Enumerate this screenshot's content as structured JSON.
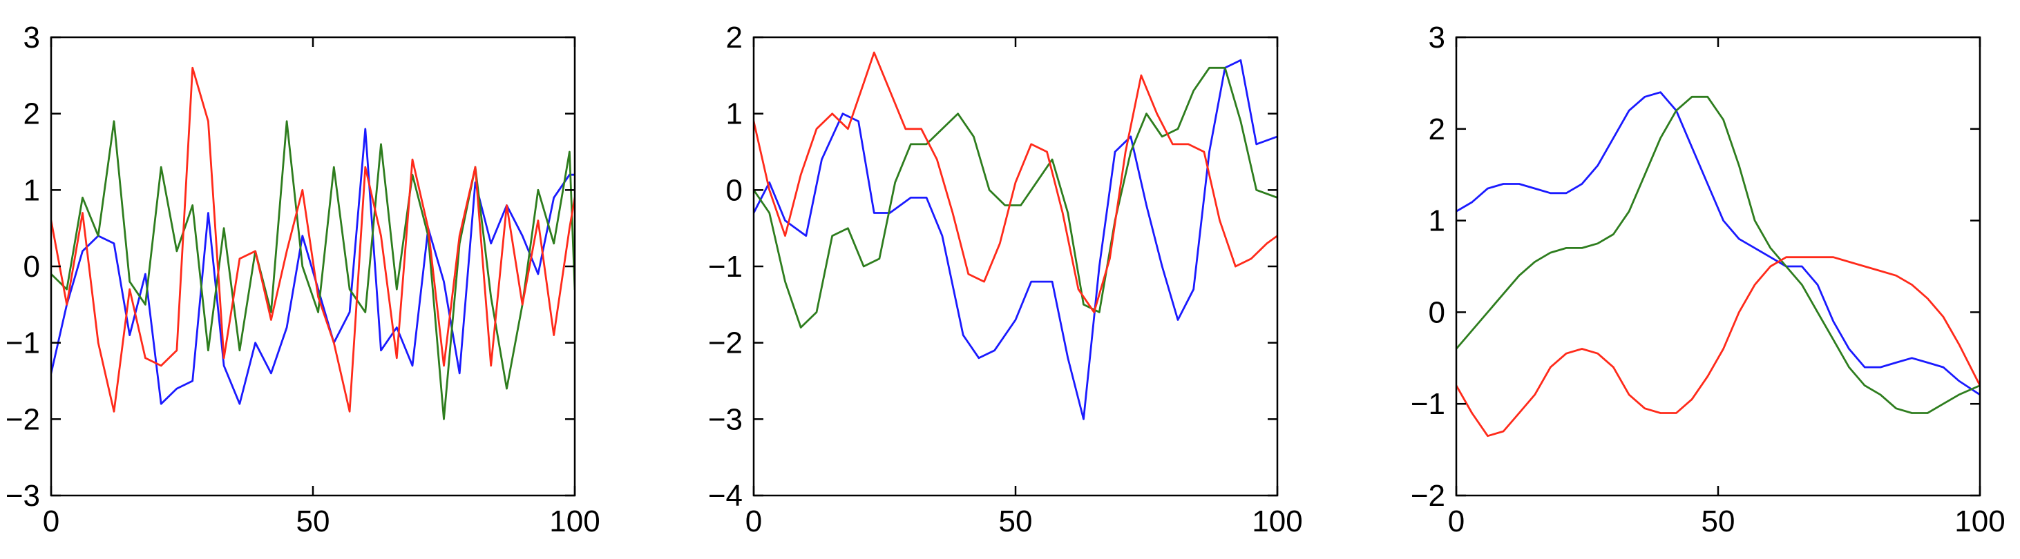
{
  "colors": {
    "blue": "#1a1aff",
    "green": "#2e7d1e",
    "red": "#ff2a1a"
  },
  "chart_data": [
    {
      "type": "line",
      "title": "",
      "xlabel": "",
      "ylabel": "",
      "xlim": [
        0,
        100
      ],
      "ylim": [
        -3,
        3
      ],
      "xticks": [
        0,
        50,
        100
      ],
      "yticks": [
        -3,
        -2,
        -1,
        0,
        1,
        2,
        3
      ],
      "xtick_labels": [
        "0",
        "50",
        "100"
      ],
      "ytick_labels": [
        "−3",
        "−2",
        "−1",
        "0",
        "1",
        "2",
        "3"
      ],
      "grid": false,
      "legend": "none",
      "series": [
        {
          "color": "blue",
          "x": [
            0,
            3,
            6,
            9,
            12,
            15,
            18,
            21,
            24,
            27,
            30,
            33,
            36,
            39,
            42,
            45,
            48,
            51,
            54,
            57,
            60,
            63,
            66,
            69,
            72,
            75,
            78,
            81,
            84,
            87,
            90,
            93,
            96,
            99,
            100
          ],
          "y": [
            -1.4,
            -0.5,
            0.2,
            0.4,
            0.3,
            -0.9,
            -0.1,
            -1.8,
            -1.6,
            -1.5,
            0.7,
            -1.3,
            -1.8,
            -1.0,
            -1.4,
            -0.8,
            0.4,
            -0.3,
            -1.0,
            -0.6,
            1.8,
            -1.1,
            -0.8,
            -1.3,
            0.5,
            -0.2,
            -1.4,
            1.1,
            0.3,
            0.8,
            0.4,
            -0.1,
            0.9,
            1.2,
            1.2
          ]
        },
        {
          "color": "green",
          "x": [
            0,
            3,
            6,
            9,
            12,
            15,
            18,
            21,
            24,
            27,
            30,
            33,
            36,
            39,
            42,
            45,
            48,
            51,
            54,
            57,
            60,
            63,
            66,
            69,
            72,
            75,
            78,
            81,
            84,
            87,
            90,
            93,
            96,
            99,
            100
          ],
          "y": [
            -0.1,
            -0.3,
            0.9,
            0.4,
            1.9,
            -0.2,
            -0.5,
            1.3,
            0.2,
            0.8,
            -1.1,
            0.5,
            -1.1,
            0.2,
            -0.6,
            1.9,
            0.0,
            -0.6,
            1.3,
            -0.3,
            -0.6,
            1.6,
            -0.3,
            1.2,
            0.4,
            -2.0,
            0.3,
            1.3,
            -0.4,
            -1.6,
            -0.5,
            1.0,
            0.3,
            1.5,
            -0.3
          ]
        },
        {
          "color": "red",
          "x": [
            0,
            3,
            6,
            9,
            12,
            15,
            18,
            21,
            24,
            27,
            30,
            33,
            36,
            39,
            42,
            45,
            48,
            51,
            54,
            57,
            60,
            63,
            66,
            69,
            72,
            75,
            78,
            81,
            84,
            87,
            90,
            93,
            96,
            99,
            100
          ],
          "y": [
            0.6,
            -0.5,
            0.7,
            -1.0,
            -1.9,
            -0.3,
            -1.2,
            -1.3,
            -1.1,
            2.6,
            1.9,
            -1.2,
            0.1,
            0.2,
            -0.7,
            0.2,
            1.0,
            -0.4,
            -1.0,
            -1.9,
            1.3,
            0.4,
            -1.2,
            1.4,
            0.5,
            -1.3,
            0.4,
            1.3,
            -1.3,
            0.8,
            -0.5,
            0.6,
            -0.9,
            0.5,
            0.9
          ]
        }
      ]
    },
    {
      "type": "line",
      "title": "",
      "xlabel": "",
      "ylabel": "",
      "xlim": [
        0,
        100
      ],
      "ylim": [
        -4,
        2
      ],
      "xticks": [
        0,
        50,
        100
      ],
      "yticks": [
        -4,
        -3,
        -2,
        -1,
        0,
        1,
        2
      ],
      "xtick_labels": [
        "0",
        "50",
        "100"
      ],
      "ytick_labels": [
        "−4",
        "−3",
        "−2",
        "−1",
        "0",
        "1",
        "2"
      ],
      "grid": false,
      "legend": "none",
      "series": [
        {
          "color": "blue",
          "x": [
            0,
            3,
            6,
            10,
            13,
            17,
            20,
            23,
            26,
            30,
            33,
            36,
            40,
            43,
            46,
            50,
            53,
            57,
            60,
            63,
            66,
            69,
            72,
            75,
            78,
            81,
            84,
            87,
            90,
            93,
            96,
            100
          ],
          "y": [
            -0.3,
            0.1,
            -0.4,
            -0.6,
            0.4,
            1.0,
            0.9,
            -0.3,
            -0.3,
            -0.1,
            -0.1,
            -0.6,
            -1.9,
            -2.2,
            -2.1,
            -1.7,
            -1.2,
            -1.2,
            -2.2,
            -3.0,
            -1.0,
            0.5,
            0.7,
            -0.2,
            -1.0,
            -1.7,
            -1.3,
            0.5,
            1.6,
            1.7,
            0.6,
            0.7
          ]
        },
        {
          "color": "green",
          "x": [
            0,
            3,
            6,
            9,
            12,
            15,
            18,
            21,
            24,
            27,
            30,
            33,
            36,
            39,
            42,
            45,
            48,
            51,
            54,
            57,
            60,
            63,
            66,
            69,
            72,
            75,
            78,
            81,
            84,
            87,
            90,
            93,
            96,
            100
          ],
          "y": [
            0.0,
            -0.3,
            -1.2,
            -1.8,
            -1.6,
            -0.6,
            -0.5,
            -1.0,
            -0.9,
            0.1,
            0.6,
            0.6,
            0.8,
            1.0,
            0.7,
            0.0,
            -0.2,
            -0.2,
            0.1,
            0.4,
            -0.3,
            -1.5,
            -1.6,
            -0.4,
            0.5,
            1.0,
            0.7,
            0.8,
            1.3,
            1.6,
            1.6,
            0.9,
            0.0,
            -0.1
          ]
        },
        {
          "color": "red",
          "x": [
            0,
            3,
            6,
            9,
            12,
            15,
            18,
            21,
            23,
            26,
            29,
            32,
            35,
            38,
            41,
            44,
            47,
            50,
            53,
            56,
            59,
            62,
            65,
            68,
            71,
            74,
            77,
            80,
            83,
            86,
            89,
            92,
            95,
            98,
            100
          ],
          "y": [
            0.9,
            0.0,
            -0.6,
            0.2,
            0.8,
            1.0,
            0.8,
            1.4,
            1.8,
            1.3,
            0.8,
            0.8,
            0.4,
            -0.3,
            -1.1,
            -1.2,
            -0.7,
            0.1,
            0.6,
            0.5,
            -0.3,
            -1.3,
            -1.6,
            -0.9,
            0.5,
            1.5,
            1.0,
            0.6,
            0.6,
            0.5,
            -0.4,
            -1.0,
            -0.9,
            -0.7,
            -0.6
          ]
        }
      ]
    },
    {
      "type": "line",
      "title": "",
      "xlabel": "",
      "ylabel": "",
      "xlim": [
        0,
        100
      ],
      "ylim": [
        -2,
        3
      ],
      "xticks": [
        0,
        50,
        100
      ],
      "yticks": [
        -2,
        -1,
        0,
        1,
        2,
        3
      ],
      "xtick_labels": [
        "0",
        "50",
        "100"
      ],
      "ytick_labels": [
        "−2",
        "−1",
        "0",
        "1",
        "2",
        "3"
      ],
      "grid": false,
      "legend": "none",
      "series": [
        {
          "color": "blue",
          "x": [
            0,
            3,
            6,
            9,
            12,
            15,
            18,
            21,
            24,
            27,
            30,
            33,
            36,
            39,
            42,
            45,
            48,
            51,
            54,
            57,
            60,
            63,
            66,
            69,
            72,
            75,
            78,
            81,
            84,
            87,
            90,
            93,
            96,
            100
          ],
          "y": [
            1.1,
            1.2,
            1.35,
            1.4,
            1.4,
            1.35,
            1.3,
            1.3,
            1.4,
            1.6,
            1.9,
            2.2,
            2.35,
            2.4,
            2.2,
            1.8,
            1.4,
            1.0,
            0.8,
            0.7,
            0.6,
            0.5,
            0.5,
            0.3,
            -0.1,
            -0.4,
            -0.6,
            -0.6,
            -0.55,
            -0.5,
            -0.55,
            -0.6,
            -0.75,
            -0.9
          ]
        },
        {
          "color": "green",
          "x": [
            0,
            3,
            6,
            9,
            12,
            15,
            18,
            21,
            24,
            27,
            30,
            33,
            36,
            39,
            42,
            45,
            48,
            51,
            54,
            57,
            60,
            63,
            66,
            69,
            72,
            75,
            78,
            81,
            84,
            87,
            90,
            93,
            96,
            100
          ],
          "y": [
            -0.4,
            -0.2,
            0.0,
            0.2,
            0.4,
            0.55,
            0.65,
            0.7,
            0.7,
            0.75,
            0.85,
            1.1,
            1.5,
            1.9,
            2.2,
            2.35,
            2.35,
            2.1,
            1.6,
            1.0,
            0.7,
            0.5,
            0.3,
            0.0,
            -0.3,
            -0.6,
            -0.8,
            -0.9,
            -1.05,
            -1.1,
            -1.1,
            -1.0,
            -0.9,
            -0.8
          ]
        },
        {
          "color": "red",
          "x": [
            0,
            3,
            6,
            9,
            12,
            15,
            18,
            21,
            24,
            27,
            30,
            33,
            36,
            39,
            42,
            45,
            48,
            51,
            54,
            57,
            60,
            63,
            66,
            69,
            72,
            75,
            78,
            81,
            84,
            87,
            90,
            93,
            96,
            100
          ],
          "y": [
            -0.8,
            -1.1,
            -1.35,
            -1.3,
            -1.1,
            -0.9,
            -0.6,
            -0.45,
            -0.4,
            -0.45,
            -0.6,
            -0.9,
            -1.05,
            -1.1,
            -1.1,
            -0.95,
            -0.7,
            -0.4,
            0.0,
            0.3,
            0.5,
            0.6,
            0.6,
            0.6,
            0.6,
            0.55,
            0.5,
            0.45,
            0.4,
            0.3,
            0.15,
            -0.05,
            -0.35,
            -0.8
          ]
        }
      ]
    }
  ]
}
